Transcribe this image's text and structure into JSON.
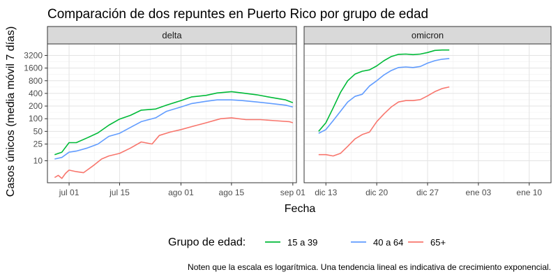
{
  "chart_data": {
    "type": "line",
    "title": "Comparación de dos repuntes en Puerto Rico por grupo de edad",
    "xlabel": "Fecha",
    "ylabel": "Casos únicos (media móvil 7 días)",
    "y_scale": "log",
    "y_ticks": [
      10,
      25,
      50,
      100,
      200,
      400,
      800,
      1600,
      3200
    ],
    "ylim": [
      3,
      6000
    ],
    "grid": true,
    "legend": {
      "title": "Grupo de edad:",
      "placement": "bottom",
      "entries": [
        "15 a 39",
        "40 a 64",
        "65+"
      ]
    },
    "caption": "Noten que la escala es logarítmica. Una tendencia lineal es indicativa de crecimiento exponencial.",
    "colors": {
      "15 a 39": "#00ba38",
      "40 a 64": "#619cff",
      "65+": "#f8766d"
    },
    "panels": [
      {
        "name": "delta",
        "x_ticks": [
          "jul 01",
          "jul 15",
          "ago 01",
          "ago 15",
          "sep 01"
        ],
        "x_tick_dates": [
          "2021-07-01",
          "2021-07-15",
          "2021-08-01",
          "2021-08-15",
          "2021-09-01"
        ],
        "xlim": [
          "2021-06-25",
          "2021-09-02"
        ],
        "series": [
          {
            "name": "15 a 39",
            "x": [
              "2021-06-27",
              "2021-06-29",
              "2021-07-01",
              "2021-07-03",
              "2021-07-06",
              "2021-07-09",
              "2021-07-12",
              "2021-07-15",
              "2021-07-18",
              "2021-07-21",
              "2021-07-25",
              "2021-07-28",
              "2021-08-01",
              "2021-08-04",
              "2021-08-08",
              "2021-08-11",
              "2021-08-15",
              "2021-08-18",
              "2021-08-22",
              "2021-08-26",
              "2021-08-30",
              "2021-09-01"
            ],
            "y": [
              14,
              16,
              27,
              27,
              35,
              46,
              70,
              98,
              120,
              160,
              170,
              210,
              270,
              330,
              360,
              410,
              440,
              410,
              370,
              320,
              280,
              240
            ]
          },
          {
            "name": "40 a 64",
            "x": [
              "2021-06-27",
              "2021-06-29",
              "2021-07-01",
              "2021-07-03",
              "2021-07-06",
              "2021-07-09",
              "2021-07-12",
              "2021-07-15",
              "2021-07-18",
              "2021-07-21",
              "2021-07-25",
              "2021-07-28",
              "2021-08-01",
              "2021-08-04",
              "2021-08-08",
              "2021-08-11",
              "2021-08-15",
              "2021-08-18",
              "2021-08-22",
              "2021-08-26",
              "2021-08-30",
              "2021-09-01"
            ],
            "y": [
              11,
              12,
              16,
              17,
              20,
              25,
              38,
              45,
              62,
              85,
              105,
              150,
              190,
              230,
              260,
              280,
              280,
              270,
              250,
              230,
              210,
              190
            ]
          },
          {
            "name": "65+",
            "x": [
              "2021-06-27",
              "2021-06-28",
              "2021-06-29",
              "2021-06-30",
              "2021-07-01",
              "2021-07-03",
              "2021-07-05",
              "2021-07-06",
              "2021-07-08",
              "2021-07-10",
              "2021-07-12",
              "2021-07-15",
              "2021-07-18",
              "2021-07-21",
              "2021-07-24",
              "2021-07-26",
              "2021-07-29",
              "2021-08-01",
              "2021-08-04",
              "2021-08-08",
              "2021-08-12",
              "2021-08-15",
              "2021-08-19",
              "2021-08-23",
              "2021-08-27",
              "2021-08-31",
              "2021-09-01"
            ],
            "y": [
              4,
              4.5,
              3.8,
              5,
              6,
              5.5,
              5.2,
              6,
              8,
              11,
              13,
              15,
              20,
              28,
              25,
              40,
              48,
              55,
              65,
              80,
              100,
              105,
              95,
              95,
              90,
              85,
              80
            ]
          }
        ]
      },
      {
        "name": "omicron",
        "x_ticks": [
          "dic 13",
          "dic 20",
          "dic 27",
          "ene 03",
          "ene 10"
        ],
        "x_tick_dates": [
          "2021-12-13",
          "2021-12-20",
          "2021-12-27",
          "2022-01-03",
          "2022-01-10"
        ],
        "xlim": [
          "2021-12-10",
          "2022-01-13"
        ],
        "series": [
          {
            "name": "15 a 39",
            "x": [
              "2021-12-12",
              "2021-12-13",
              "2021-12-14",
              "2021-12-15",
              "2021-12-16",
              "2021-12-17",
              "2021-12-18",
              "2021-12-19",
              "2021-12-20",
              "2021-12-21",
              "2021-12-22",
              "2021-12-23",
              "2021-12-24",
              "2021-12-25",
              "2021-12-26",
              "2021-12-27",
              "2021-12-28",
              "2021-12-29",
              "2021-12-30"
            ],
            "y": [
              50,
              80,
              180,
              420,
              800,
              1150,
              1350,
              1450,
              1800,
              2400,
              3000,
              3400,
              3450,
              3350,
              3450,
              3750,
              4200,
              4300,
              4300
            ]
          },
          {
            "name": "40 a 64",
            "x": [
              "2021-12-12",
              "2021-12-13",
              "2021-12-14",
              "2021-12-15",
              "2021-12-16",
              "2021-12-17",
              "2021-12-18",
              "2021-12-19",
              "2021-12-20",
              "2021-12-21",
              "2021-12-22",
              "2021-12-23",
              "2021-12-24",
              "2021-12-25",
              "2021-12-26",
              "2021-12-27",
              "2021-12-28",
              "2021-12-29",
              "2021-12-30"
            ],
            "y": [
              45,
              55,
              90,
              150,
              250,
              340,
              380,
              600,
              800,
              1100,
              1400,
              1650,
              1700,
              1650,
              1750,
              2100,
              2400,
              2600,
              2700
            ]
          },
          {
            "name": "65+",
            "x": [
              "2021-12-12",
              "2021-12-13",
              "2021-12-14",
              "2021-12-15",
              "2021-12-16",
              "2021-12-17",
              "2021-12-18",
              "2021-12-19",
              "2021-12-20",
              "2021-12-21",
              "2021-12-22",
              "2021-12-23",
              "2021-12-24",
              "2021-12-25",
              "2021-12-26",
              "2021-12-27",
              "2021-12-28",
              "2021-12-29",
              "2021-12-30"
            ],
            "y": [
              14,
              14,
              13,
              15,
              22,
              33,
              42,
              48,
              85,
              130,
              190,
              250,
              270,
              270,
              285,
              350,
              440,
              520,
              570
            ]
          }
        ]
      }
    ]
  }
}
